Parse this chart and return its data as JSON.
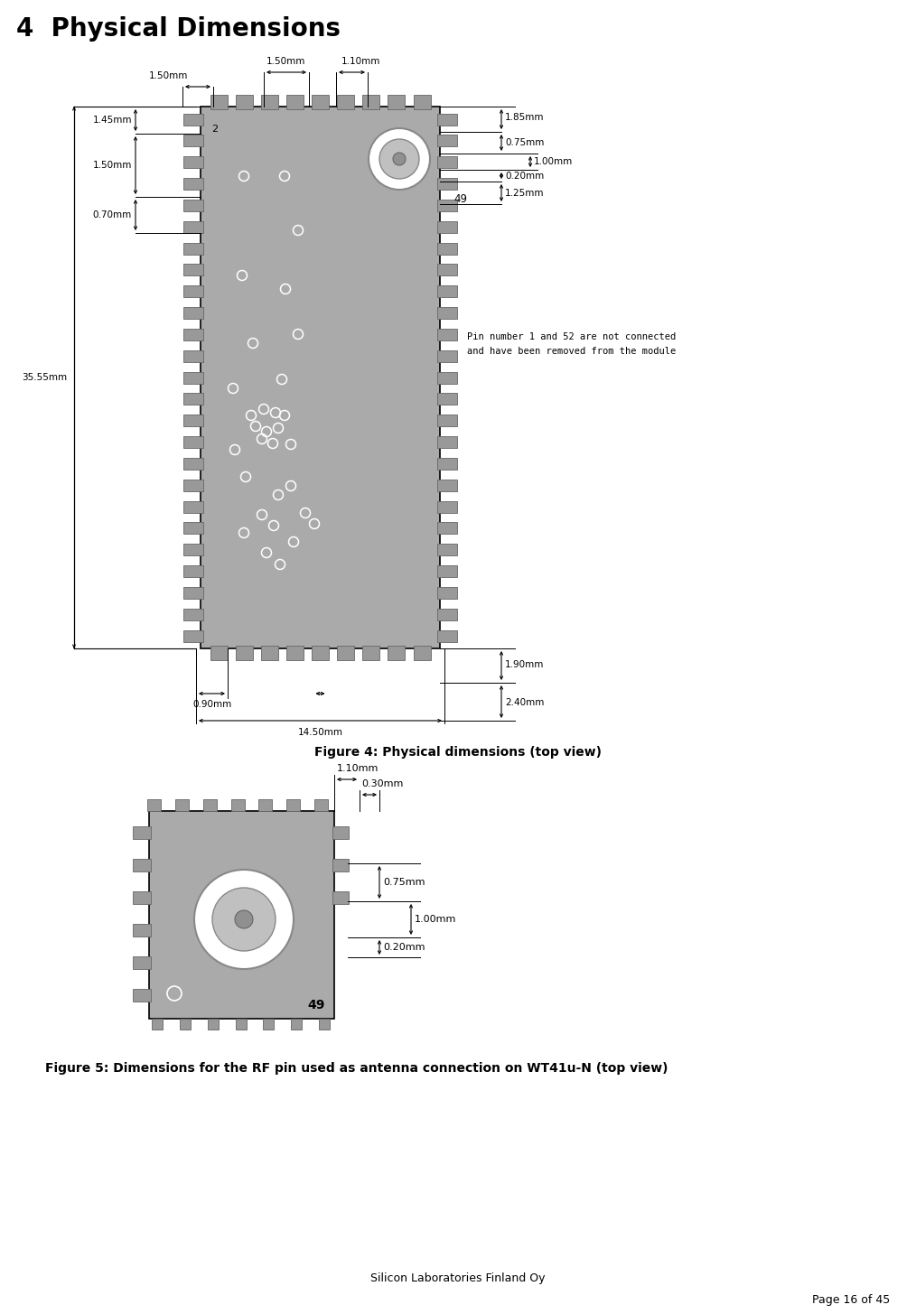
{
  "title": "4  Physical Dimensions",
  "figure4_caption": "Figure 4: Physical dimensions (top view)",
  "figure5_caption": "Figure 5: Dimensions for the RF pin used as antenna connection on WT41u-N (top view)",
  "footer_center": "Silicon Laboratories Finland Oy",
  "footer_right": "Page 16 of 45",
  "bg_color": "#ffffff",
  "module_color": "#aaaaaa",
  "pad_color": "#999999",
  "pad_outline": "#666666",
  "text_color": "#000000",
  "note_text": "Pin number 1 and 52 are not connected\nand have been removed from the module",
  "dim_arrowstyle": "<->",
  "dim_lw": 0.8,
  "dim_fs": 7.5
}
